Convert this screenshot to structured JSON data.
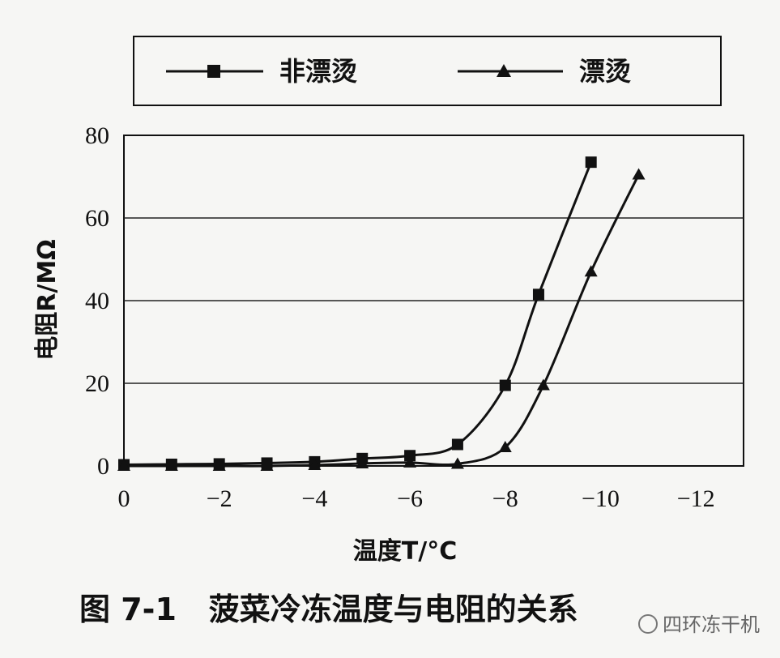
{
  "chart_data": {
    "type": "line",
    "xlabel": "温度T/°C",
    "ylabel": "电阻R/MΩ",
    "xlim": [
      0,
      -13
    ],
    "ylim": [
      0,
      80
    ],
    "x_ticks": [
      0,
      -2,
      -4,
      -6,
      -8,
      -10,
      -12
    ],
    "x_tick_labels": [
      "0",
      "−2",
      "−4",
      "−6",
      "−8",
      "−10",
      "−12"
    ],
    "y_ticks": [
      0,
      20,
      40,
      60,
      80
    ],
    "y_tick_labels": [
      "0",
      "20",
      "40",
      "60",
      "80"
    ],
    "grid": "horizontal",
    "legend": "top",
    "series": [
      {
        "name": "非漂烫",
        "marker": "square",
        "x": [
          0,
          -1,
          -2,
          -3,
          -4,
          -5,
          -6,
          -7,
          -8,
          -8.7,
          -9.8
        ],
        "y": [
          0.3,
          0.4,
          0.5,
          0.7,
          1.0,
          1.8,
          2.5,
          5.2,
          19.5,
          41.5,
          73.5
        ]
      },
      {
        "name": "漂烫",
        "marker": "triangle",
        "x": [
          0,
          -1,
          -2,
          -3,
          -4,
          -5,
          -6,
          -7,
          -8,
          -8.8,
          -9.8,
          -10.8
        ],
        "y": [
          0.0,
          0.0,
          0.0,
          0.0,
          0.2,
          0.6,
          0.8,
          0.5,
          4.5,
          19.5,
          47.0,
          70.5
        ]
      }
    ]
  },
  "caption": "图 7-1   菠菜冷冻温度与电阻的关系",
  "watermark": "四环冻干机",
  "colors": {
    "ink": "#111111",
    "grid": "#222222",
    "background": "#f6f6f4"
  }
}
